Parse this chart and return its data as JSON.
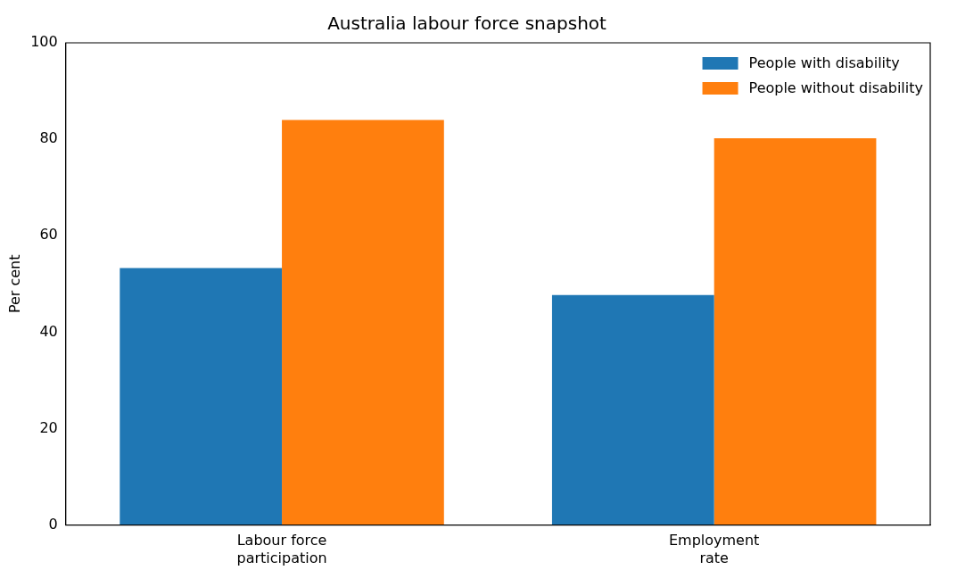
{
  "chart_data": {
    "type": "bar",
    "title": "Australia labour force snapshot",
    "ylabel": "Per cent",
    "categories": [
      "Labour force participation",
      "Employment rate"
    ],
    "series": [
      {
        "name": "People with disability",
        "color": "#1f77b4",
        "values": [
          53.3,
          47.7
        ]
      },
      {
        "name": "People without disability",
        "color": "#ff7f0e",
        "values": [
          84.0,
          80.2
        ]
      }
    ],
    "ylim": [
      0,
      100
    ],
    "yticks": [
      0,
      20,
      40,
      60,
      80,
      100
    ],
    "grid": false,
    "legend": "top right"
  }
}
